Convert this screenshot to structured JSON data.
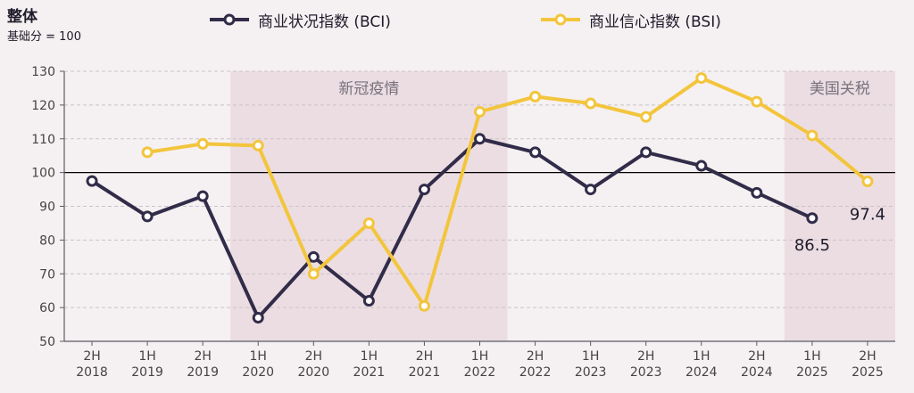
{
  "colors": {
    "background": "#f5f0f1",
    "bci": "#312c48",
    "bsi": "#f3c53c",
    "shade": "#ecdde2",
    "axis": "#5a5a66",
    "grid": "#c9c3c8",
    "text": "#1e1b2b",
    "shade_label": "#77727d"
  },
  "chart_data": {
    "type": "line",
    "title": "整体",
    "subtitle": "基础分 = 100",
    "categories": [
      "2H 2018",
      "1H 2019",
      "2H 2019",
      "1H 2020",
      "2H 2020",
      "1H 2021",
      "2H 2021",
      "1H 2022",
      "2H 2022",
      "1H 2023",
      "2H 2023",
      "1H 2024",
      "2H 2024",
      "1H 2025",
      "2H 2025"
    ],
    "category_lines": [
      [
        "2H",
        "2018"
      ],
      [
        "1H",
        "2019"
      ],
      [
        "2H",
        "2019"
      ],
      [
        "1H",
        "2020"
      ],
      [
        "2H",
        "2020"
      ],
      [
        "1H",
        "2021"
      ],
      [
        "2H",
        "2021"
      ],
      [
        "1H",
        "2022"
      ],
      [
        "2H",
        "2022"
      ],
      [
        "1H",
        "2023"
      ],
      [
        "2H",
        "2023"
      ],
      [
        "1H",
        "2024"
      ],
      [
        "2H",
        "2024"
      ],
      [
        "1H",
        "2025"
      ],
      [
        "2H",
        "2025"
      ]
    ],
    "series": [
      {
        "name": "商业状况指数 (BCI)",
        "key": "bci",
        "values": [
          97.5,
          87,
          93,
          57,
          75,
          62,
          95,
          110,
          106,
          95,
          106,
          102,
          94,
          86.5,
          null
        ],
        "end_label": "86.5"
      },
      {
        "name": "商业信心指数 (BSI)",
        "key": "bsi",
        "values": [
          null,
          106,
          108.5,
          108,
          70,
          85,
          60.5,
          118,
          122.5,
          120.5,
          116.5,
          128,
          121,
          111,
          97.4
        ],
        "end_label": "97.4"
      }
    ],
    "ylim": [
      50,
      130
    ],
    "yticks": [
      50,
      60,
      70,
      80,
      90,
      100,
      110,
      120,
      130
    ],
    "baseline": 100,
    "gridlines": "dashed",
    "legend_position": "top",
    "shaded_regions": [
      {
        "label": "新冠疫情",
        "from_index": 3,
        "to_index": 7
      },
      {
        "label": "美国关税",
        "from_index": 13,
        "to_index": 14
      }
    ]
  }
}
